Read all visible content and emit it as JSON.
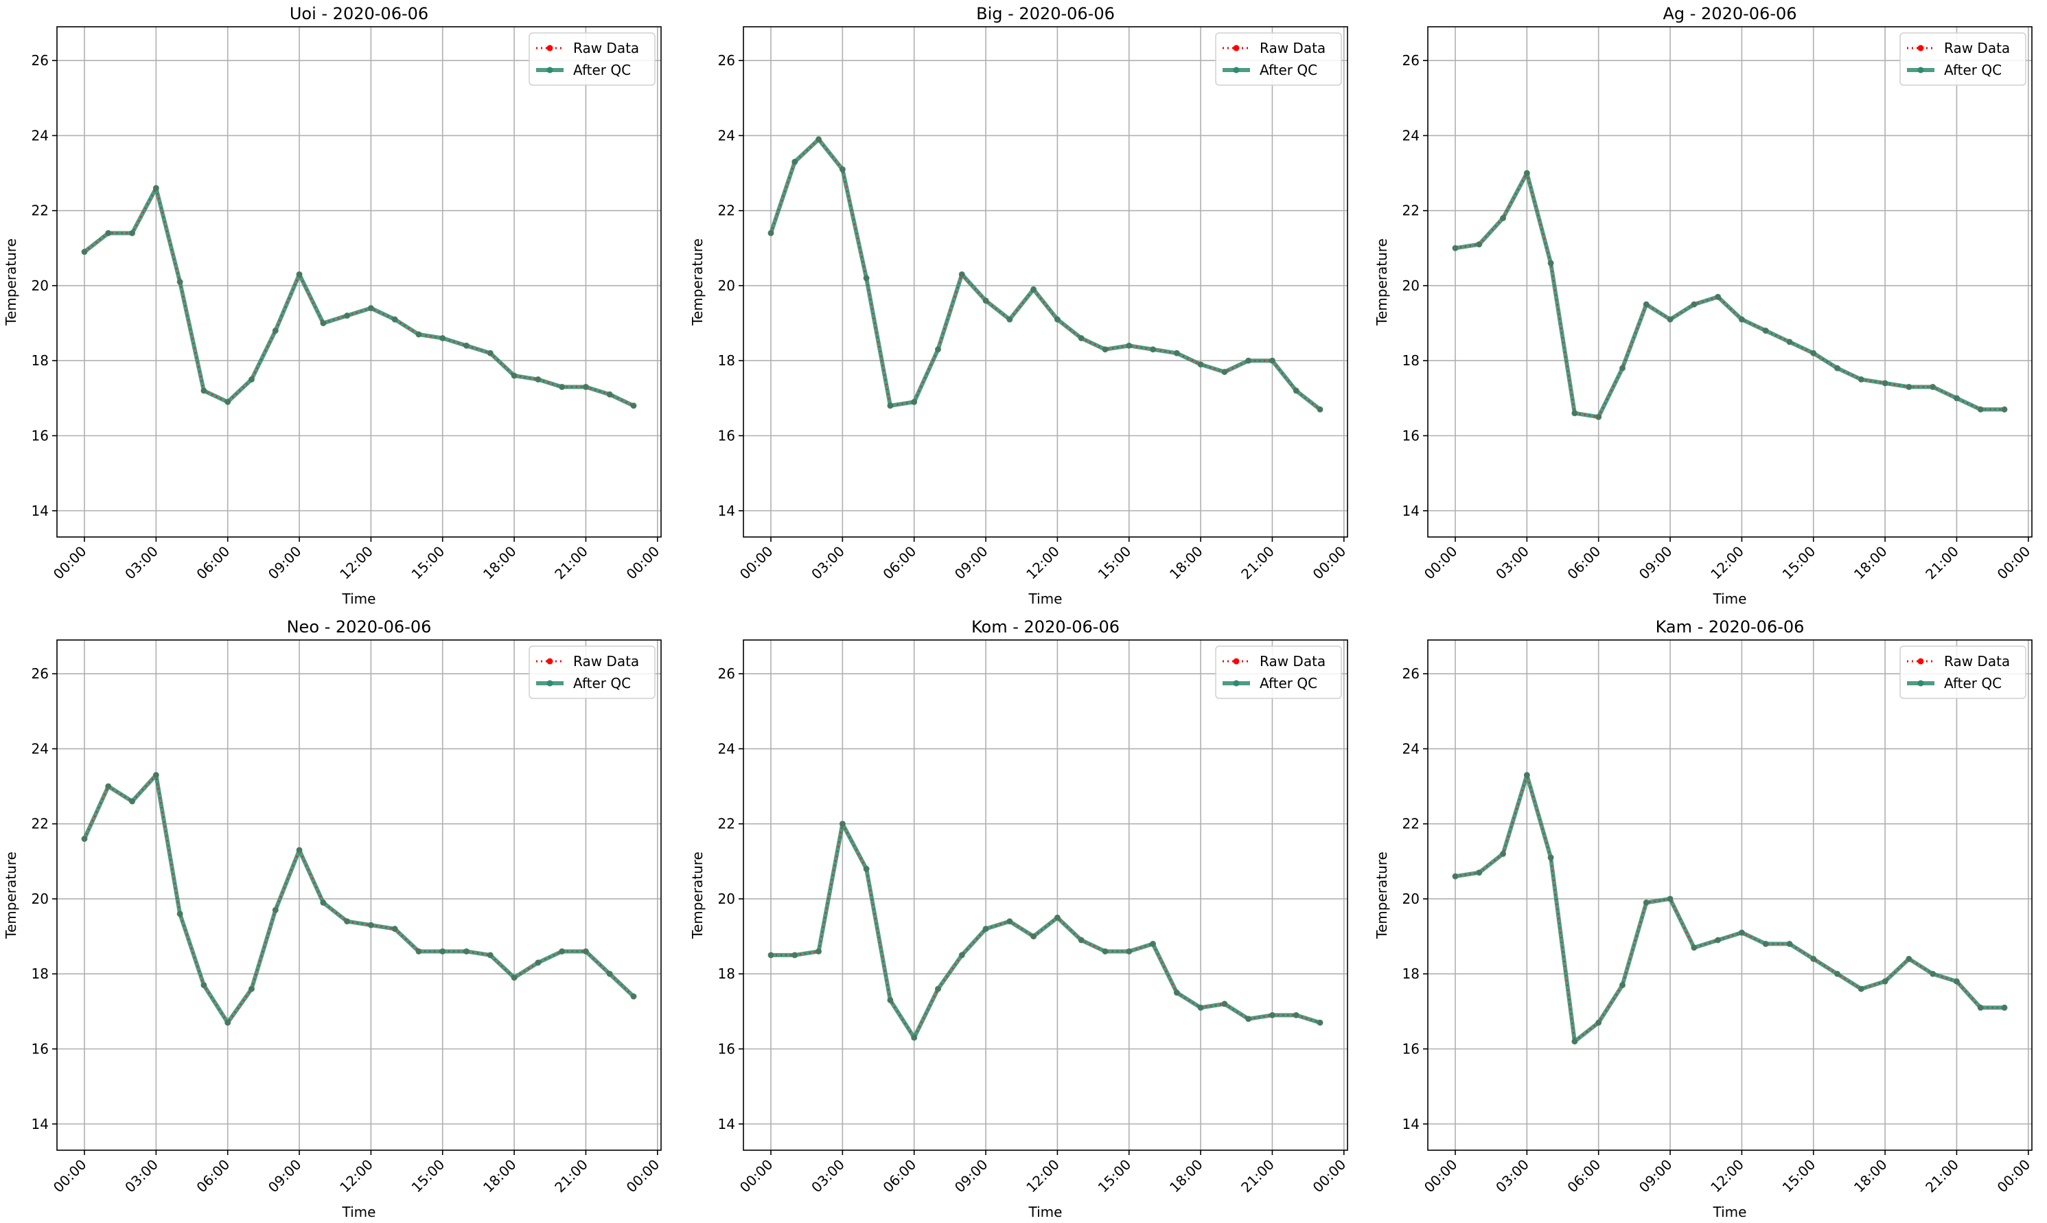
{
  "figure": {
    "background": "#ffffff",
    "raw_color": "#ff0000",
    "qc_color": "#2e8b6e",
    "grid_color": "#b0b0b0"
  },
  "chart_data": [
    {
      "type": "line",
      "title": "Uoi - 2020-06-06",
      "xlabel": "Time",
      "ylabel": "Temperature",
      "ylim": [
        13.3,
        26.9
      ],
      "yticks": [
        14,
        16,
        18,
        20,
        22,
        24,
        26
      ],
      "xlim": [
        -1.15,
        24.15
      ],
      "xticks": [
        "00:00",
        "03:00",
        "06:00",
        "09:00",
        "12:00",
        "15:00",
        "18:00",
        "21:00",
        "00:00"
      ],
      "grid": true,
      "legend": "top-right",
      "x": [
        "00:00",
        "01:00",
        "02:00",
        "03:00",
        "04:00",
        "05:00",
        "06:00",
        "07:00",
        "08:00",
        "09:00",
        "10:00",
        "11:00",
        "12:00",
        "13:00",
        "14:00",
        "15:00",
        "16:00",
        "17:00",
        "18:00",
        "19:00",
        "20:00",
        "21:00",
        "22:00",
        "23:00"
      ],
      "series": [
        {
          "name": "Raw Data",
          "values": [
            20.9,
            21.4,
            21.4,
            22.6,
            20.1,
            17.2,
            16.9,
            17.5,
            18.8,
            20.3,
            19.0,
            19.2,
            19.4,
            19.1,
            18.7,
            18.6,
            18.4,
            18.2,
            17.6,
            17.5,
            17.3,
            17.3,
            17.1,
            16.8
          ]
        },
        {
          "name": "After QC",
          "values": [
            20.9,
            21.4,
            21.4,
            22.6,
            20.1,
            17.2,
            16.9,
            17.5,
            18.8,
            20.3,
            19.0,
            19.2,
            19.4,
            19.1,
            18.7,
            18.6,
            18.4,
            18.2,
            17.6,
            17.5,
            17.3,
            17.3,
            17.1,
            16.8
          ]
        }
      ]
    },
    {
      "type": "line",
      "title": "Big - 2020-06-06",
      "xlabel": "Time",
      "ylabel": "Temperature",
      "ylim": [
        13.3,
        26.9
      ],
      "yticks": [
        14,
        16,
        18,
        20,
        22,
        24,
        26
      ],
      "xlim": [
        -1.15,
        24.15
      ],
      "xticks": [
        "00:00",
        "03:00",
        "06:00",
        "09:00",
        "12:00",
        "15:00",
        "18:00",
        "21:00",
        "00:00"
      ],
      "grid": true,
      "legend": "top-right",
      "x": [
        "00:00",
        "01:00",
        "02:00",
        "03:00",
        "04:00",
        "05:00",
        "06:00",
        "07:00",
        "08:00",
        "09:00",
        "10:00",
        "11:00",
        "12:00",
        "13:00",
        "14:00",
        "15:00",
        "16:00",
        "17:00",
        "18:00",
        "19:00",
        "20:00",
        "21:00",
        "22:00",
        "23:00"
      ],
      "series": [
        {
          "name": "Raw Data",
          "values": [
            21.4,
            23.3,
            23.9,
            23.1,
            20.2,
            16.8,
            16.9,
            18.3,
            20.3,
            19.6,
            19.1,
            19.9,
            19.1,
            18.6,
            18.3,
            18.4,
            18.3,
            18.2,
            17.9,
            17.7,
            18.0,
            18.0,
            17.2,
            16.7
          ]
        },
        {
          "name": "After QC",
          "values": [
            21.4,
            23.3,
            23.9,
            23.1,
            20.2,
            16.8,
            16.9,
            18.3,
            20.3,
            19.6,
            19.1,
            19.9,
            19.1,
            18.6,
            18.3,
            18.4,
            18.3,
            18.2,
            17.9,
            17.7,
            18.0,
            18.0,
            17.2,
            16.7
          ]
        }
      ]
    },
    {
      "type": "line",
      "title": "Ag - 2020-06-06",
      "xlabel": "Time",
      "ylabel": "Temperature",
      "ylim": [
        13.3,
        26.9
      ],
      "yticks": [
        14,
        16,
        18,
        20,
        22,
        24,
        26
      ],
      "xlim": [
        -1.15,
        24.15
      ],
      "xticks": [
        "00:00",
        "03:00",
        "06:00",
        "09:00",
        "12:00",
        "15:00",
        "18:00",
        "21:00",
        "00:00"
      ],
      "grid": true,
      "legend": "top-right",
      "x": [
        "00:00",
        "01:00",
        "02:00",
        "03:00",
        "04:00",
        "05:00",
        "06:00",
        "07:00",
        "08:00",
        "09:00",
        "10:00",
        "11:00",
        "12:00",
        "13:00",
        "14:00",
        "15:00",
        "16:00",
        "17:00",
        "18:00",
        "19:00",
        "20:00",
        "21:00",
        "22:00",
        "23:00"
      ],
      "series": [
        {
          "name": "Raw Data",
          "values": [
            21.0,
            21.1,
            21.8,
            23.0,
            20.6,
            16.6,
            16.5,
            17.8,
            19.5,
            19.1,
            19.5,
            19.7,
            19.1,
            18.8,
            18.5,
            18.2,
            17.8,
            17.5,
            17.4,
            17.3,
            17.3,
            17.0,
            16.7,
            16.7
          ]
        },
        {
          "name": "After QC",
          "values": [
            21.0,
            21.1,
            21.8,
            23.0,
            20.6,
            16.6,
            16.5,
            17.8,
            19.5,
            19.1,
            19.5,
            19.7,
            19.1,
            18.8,
            18.5,
            18.2,
            17.8,
            17.5,
            17.4,
            17.3,
            17.3,
            17.0,
            16.7,
            16.7
          ]
        }
      ]
    },
    {
      "type": "line",
      "title": "Neo - 2020-06-06",
      "xlabel": "Time",
      "ylabel": "Temperature",
      "ylim": [
        13.3,
        26.9
      ],
      "yticks": [
        14,
        16,
        18,
        20,
        22,
        24,
        26
      ],
      "xlim": [
        -1.15,
        24.15
      ],
      "xticks": [
        "00:00",
        "03:00",
        "06:00",
        "09:00",
        "12:00",
        "15:00",
        "18:00",
        "21:00",
        "00:00"
      ],
      "grid": true,
      "legend": "top-right",
      "x": [
        "00:00",
        "01:00",
        "02:00",
        "03:00",
        "04:00",
        "05:00",
        "06:00",
        "07:00",
        "08:00",
        "09:00",
        "10:00",
        "11:00",
        "12:00",
        "13:00",
        "14:00",
        "15:00",
        "16:00",
        "17:00",
        "18:00",
        "19:00",
        "20:00",
        "21:00",
        "22:00",
        "23:00"
      ],
      "series": [
        {
          "name": "Raw Data",
          "values": [
            21.6,
            23.0,
            22.6,
            23.3,
            19.6,
            17.7,
            16.7,
            17.6,
            19.7,
            21.3,
            19.9,
            19.4,
            19.3,
            19.2,
            18.6,
            18.6,
            18.6,
            18.5,
            17.9,
            18.3,
            18.6,
            18.6,
            18.0,
            17.4
          ]
        },
        {
          "name": "After QC",
          "values": [
            21.6,
            23.0,
            22.6,
            23.3,
            19.6,
            17.7,
            16.7,
            17.6,
            19.7,
            21.3,
            19.9,
            19.4,
            19.3,
            19.2,
            18.6,
            18.6,
            18.6,
            18.5,
            17.9,
            18.3,
            18.6,
            18.6,
            18.0,
            17.4
          ]
        }
      ]
    },
    {
      "type": "line",
      "title": "Kom - 2020-06-06",
      "xlabel": "Time",
      "ylabel": "Temperature",
      "ylim": [
        13.3,
        26.9
      ],
      "yticks": [
        14,
        16,
        18,
        20,
        22,
        24,
        26
      ],
      "xlim": [
        -1.15,
        24.15
      ],
      "xticks": [
        "00:00",
        "03:00",
        "06:00",
        "09:00",
        "12:00",
        "15:00",
        "18:00",
        "21:00",
        "00:00"
      ],
      "grid": true,
      "legend": "top-right",
      "x": [
        "00:00",
        "01:00",
        "02:00",
        "03:00",
        "04:00",
        "05:00",
        "06:00",
        "07:00",
        "08:00",
        "09:00",
        "10:00",
        "11:00",
        "12:00",
        "13:00",
        "14:00",
        "15:00",
        "16:00",
        "17:00",
        "18:00",
        "19:00",
        "20:00",
        "21:00",
        "22:00",
        "23:00"
      ],
      "series": [
        {
          "name": "Raw Data",
          "values": [
            18.5,
            18.5,
            18.6,
            22.0,
            20.8,
            17.3,
            16.3,
            17.6,
            18.5,
            19.2,
            19.4,
            19.0,
            19.5,
            18.9,
            18.6,
            18.6,
            18.8,
            17.5,
            17.1,
            17.2,
            16.8,
            16.9,
            16.9,
            16.7
          ]
        },
        {
          "name": "After QC",
          "values": [
            18.5,
            18.5,
            18.6,
            22.0,
            20.8,
            17.3,
            16.3,
            17.6,
            18.5,
            19.2,
            19.4,
            19.0,
            19.5,
            18.9,
            18.6,
            18.6,
            18.8,
            17.5,
            17.1,
            17.2,
            16.8,
            16.9,
            16.9,
            16.7
          ]
        }
      ]
    },
    {
      "type": "line",
      "title": "Kam - 2020-06-06",
      "xlabel": "Time",
      "ylabel": "Temperature",
      "ylim": [
        13.3,
        26.9
      ],
      "yticks": [
        14,
        16,
        18,
        20,
        22,
        24,
        26
      ],
      "xlim": [
        -1.15,
        24.15
      ],
      "xticks": [
        "00:00",
        "03:00",
        "06:00",
        "09:00",
        "12:00",
        "15:00",
        "18:00",
        "21:00",
        "00:00"
      ],
      "grid": true,
      "legend": "top-right",
      "x": [
        "00:00",
        "01:00",
        "02:00",
        "03:00",
        "04:00",
        "05:00",
        "06:00",
        "07:00",
        "08:00",
        "09:00",
        "10:00",
        "11:00",
        "12:00",
        "13:00",
        "14:00",
        "15:00",
        "16:00",
        "17:00",
        "18:00",
        "19:00",
        "20:00",
        "21:00",
        "22:00",
        "23:00"
      ],
      "series": [
        {
          "name": "Raw Data",
          "values": [
            20.6,
            20.7,
            21.2,
            23.3,
            21.1,
            16.2,
            16.7,
            17.7,
            19.9,
            20.0,
            18.7,
            18.9,
            19.1,
            18.8,
            18.8,
            18.4,
            18.0,
            17.6,
            17.8,
            18.4,
            18.0,
            17.8,
            17.1,
            17.1
          ]
        },
        {
          "name": "After QC",
          "values": [
            20.6,
            20.7,
            21.2,
            23.3,
            21.1,
            16.2,
            16.7,
            17.7,
            19.9,
            20.0,
            18.7,
            18.9,
            19.1,
            18.8,
            18.8,
            18.4,
            18.0,
            17.6,
            17.8,
            18.4,
            18.0,
            17.8,
            17.1,
            17.1
          ]
        }
      ]
    }
  ]
}
